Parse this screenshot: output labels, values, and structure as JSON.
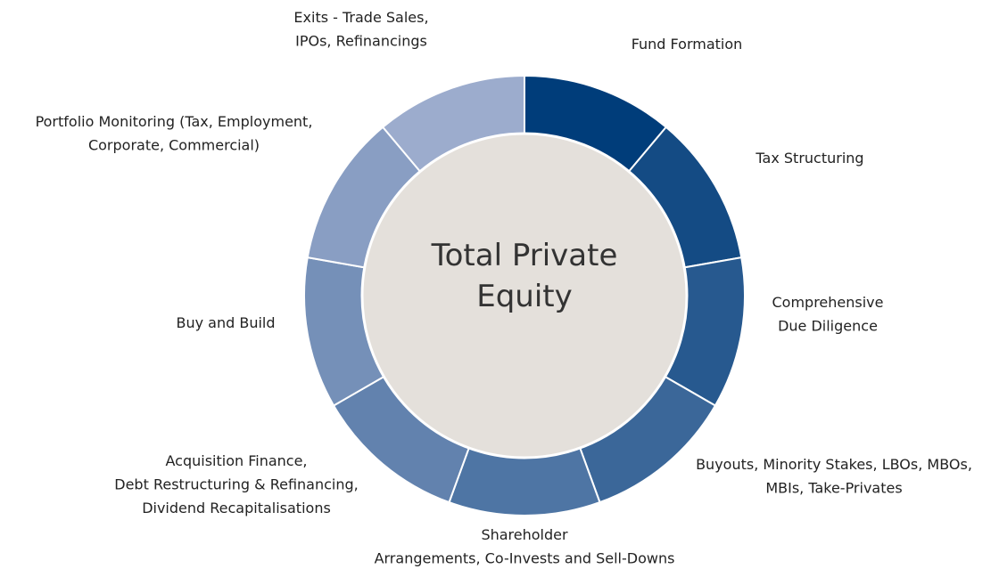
{
  "center": {
    "lines": [
      "Total Private",
      "Equity"
    ]
  },
  "segments": [
    {
      "label": [
        "Fund Formation"
      ]
    },
    {
      "label": [
        "Tax Structuring"
      ]
    },
    {
      "label": [
        "Comprehensive",
        "Due Diligence"
      ]
    },
    {
      "label": [
        "Buyouts, Minority Stakes, LBOs, MBOs,",
        "MBIs, Take-Privates"
      ]
    },
    {
      "label": [
        "Shareholder",
        "Arrangements, Co-Invests and Sell-Downs"
      ]
    },
    {
      "label": [
        "Acquisition Finance,",
        "Debt Restructuring & Refinancing,",
        "Dividend Recapitalisations"
      ]
    },
    {
      "label": [
        "Buy and Build"
      ]
    },
    {
      "label": [
        "Portfolio Monitoring (Tax, Employment,",
        "Corporate, Commercial)"
      ]
    },
    {
      "label": [
        "Exits - Trade Sales,",
        "IPOs, Refinancings"
      ]
    }
  ]
}
